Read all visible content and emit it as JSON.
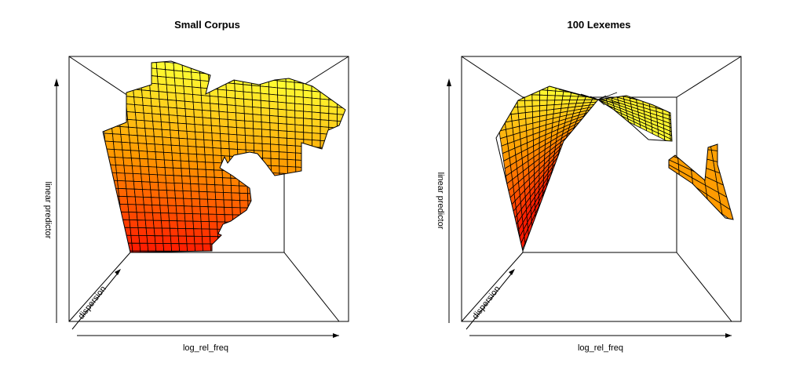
{
  "colors": {
    "background": "#ffffff",
    "line": "#000000",
    "heat_low": "#ff1a00",
    "heat_mid": "#ff9900",
    "heat_high": "#ffff33"
  },
  "chart_data": [
    {
      "type": "surface3d",
      "title": "Small Corpus",
      "xlabel": "log_rel_freq",
      "ylabel": "dispersion",
      "zlabel": "linear predictor",
      "colormap": "heat",
      "grid": true,
      "legend": "none",
      "surface": {
        "shape": "monotone plane rising with log_rel_freq, irregular masked edges",
        "z_low": 0.0,
        "z_high": 1.0
      }
    },
    {
      "type": "surface3d",
      "title": "100 Lexemes",
      "xlabel": "log_rel_freq",
      "ylabel": "dispersion",
      "zlabel": "linear predictor",
      "colormap": "heat",
      "grid": true,
      "legend": "none",
      "surface": {
        "shape": "saddle folding through a pinch point, detached orange fragment on right",
        "z_low": 0.0,
        "z_high": 1.0
      }
    }
  ]
}
